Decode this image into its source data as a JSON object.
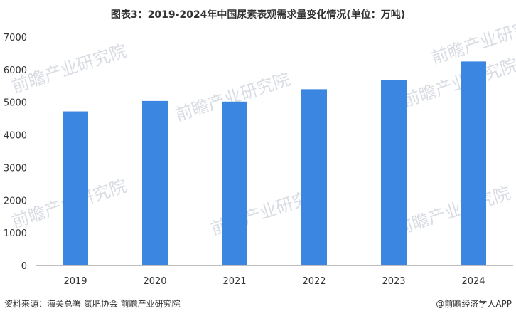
{
  "chart_data": {
    "type": "bar",
    "title": "图表3：2019-2024年中国尿素表观需求量变化情况(单位：万吨)",
    "categories": [
      "2019",
      "2020",
      "2021",
      "2022",
      "2023",
      "2024"
    ],
    "values": [
      4720,
      5040,
      5020,
      5400,
      5690,
      6250
    ],
    "ylim": [
      0,
      7000
    ],
    "yticks": [
      0,
      1000,
      2000,
      3000,
      4000,
      5000,
      6000,
      7000
    ],
    "bar_color": "#3a86e0",
    "grid": false,
    "legend": "none"
  },
  "footer": {
    "source": "资料来源：海关总署 氮肥协会 前瞻产业研究院",
    "brand": "@前瞻经济学人APP"
  },
  "watermark": {
    "text": "前瞻产业研究院",
    "color": "#d9dde3"
  }
}
